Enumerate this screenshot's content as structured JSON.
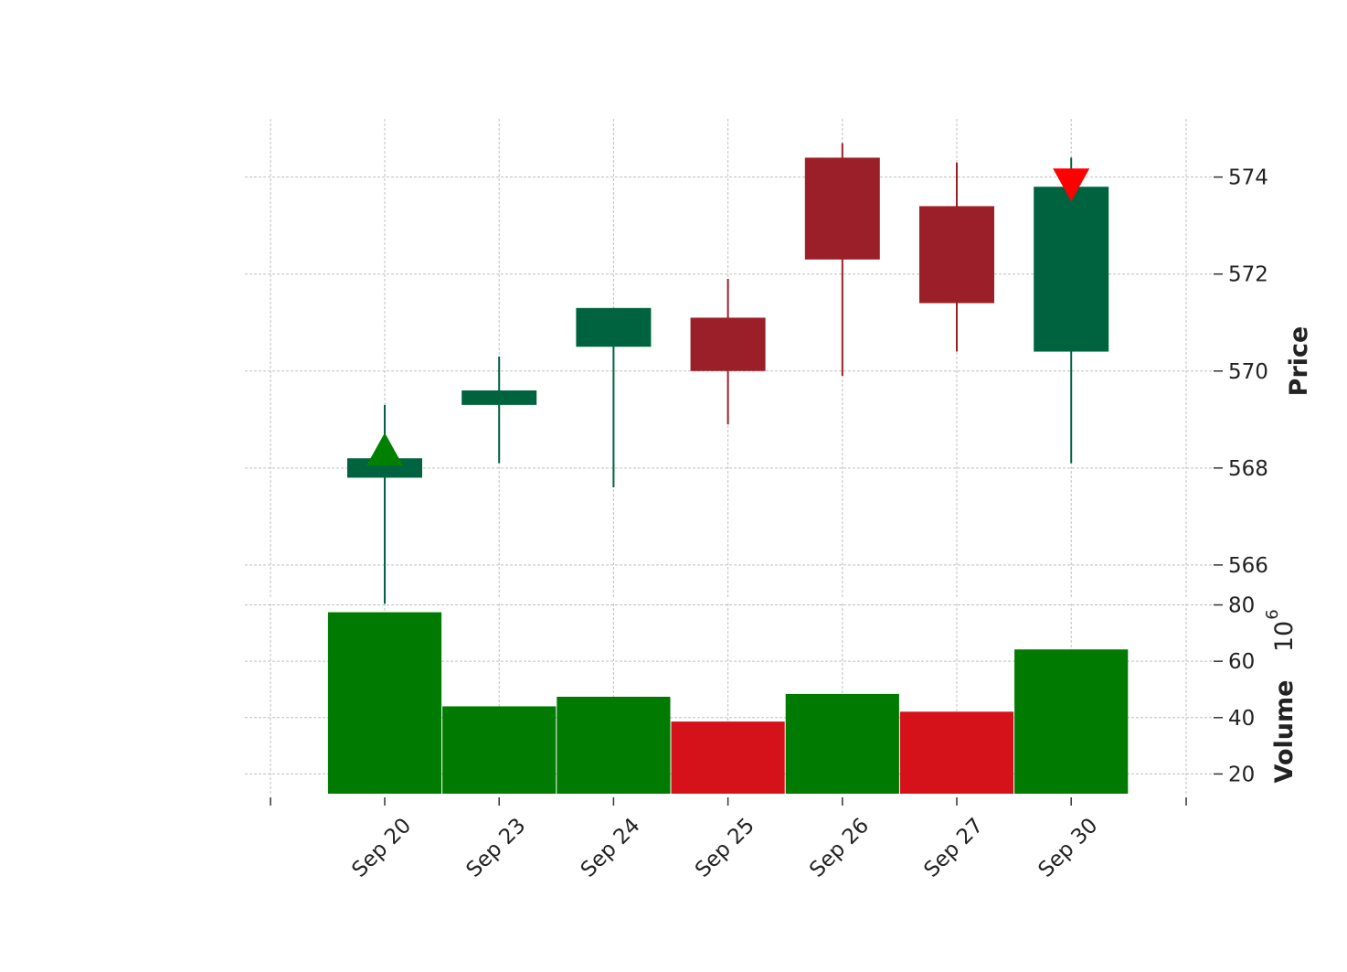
{
  "chart_data": {
    "type": "candlestick",
    "dates": [
      "Sep 20",
      "Sep 23",
      "Sep 24",
      "Sep 25",
      "Sep 26",
      "Sep 27",
      "Sep 30"
    ],
    "ohlc": [
      {
        "open": 567.8,
        "high": 569.3,
        "low": 565.2,
        "close": 568.2
      },
      {
        "open": 569.3,
        "high": 570.3,
        "low": 568.1,
        "close": 569.6
      },
      {
        "open": 570.5,
        "high": 571.3,
        "low": 567.6,
        "close": 571.3
      },
      {
        "open": 571.1,
        "high": 571.9,
        "low": 568.9,
        "close": 570.0
      },
      {
        "open": 574.4,
        "high": 574.7,
        "low": 569.9,
        "close": 572.3
      },
      {
        "open": 573.4,
        "high": 574.3,
        "low": 570.4,
        "close": 571.4
      },
      {
        "open": 570.4,
        "high": 574.4,
        "low": 568.1,
        "close": 573.8
      }
    ],
    "volume": [
      77.4,
      44.0,
      47.4,
      38.6,
      48.4,
      42.1,
      64.2
    ],
    "volume_up": [
      true,
      true,
      true,
      false,
      true,
      false,
      true
    ],
    "markers": [
      {
        "date": "Sep 20",
        "type": "buy",
        "shape": "triangle-up",
        "price": 568.2,
        "color": "#008000"
      },
      {
        "date": "Sep 30",
        "type": "sell",
        "shape": "triangle-down",
        "price": 573.8,
        "color": "#ff0000"
      }
    ],
    "price_axis": {
      "label": "Price",
      "ticks": [
        "566",
        "568",
        "570",
        "572",
        "574"
      ],
      "range": [
        565.3,
        575.2
      ],
      "position": "right"
    },
    "volume_axis": {
      "label": "Volume",
      "multiplier": "10",
      "multiplier_exp": "6",
      "ticks": [
        "20",
        "40",
        "60",
        "80"
      ],
      "range": [
        13,
        80.5
      ],
      "position": "right"
    },
    "grid": true,
    "colors": {
      "candle_up": "#006340",
      "candle_down": "#9b1f28",
      "volume_up": "#007a00",
      "volume_down": "#d5111a",
      "buy_marker": "#008000",
      "sell_marker": "#ff0000",
      "grid": "#c0c0c0"
    }
  }
}
